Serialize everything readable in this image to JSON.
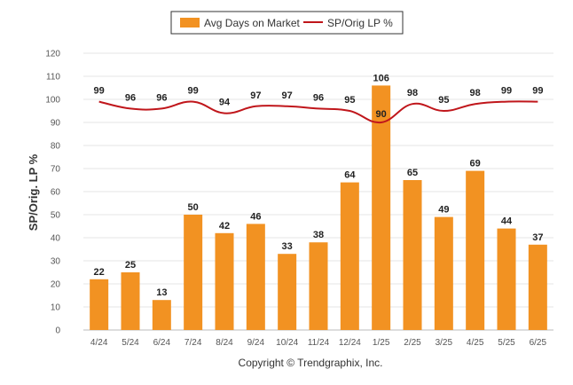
{
  "chart_data": {
    "type": "bar",
    "categories": [
      "4/24",
      "5/24",
      "6/24",
      "7/24",
      "8/24",
      "9/24",
      "10/24",
      "11/24",
      "12/24",
      "1/25",
      "2/25",
      "3/25",
      "4/25",
      "5/25",
      "6/25"
    ],
    "series": [
      {
        "name": "Avg Days on Market",
        "type": "bar",
        "color": "#F29222",
        "values": [
          22,
          25,
          13,
          50,
          42,
          46,
          33,
          38,
          64,
          106,
          65,
          49,
          69,
          44,
          37
        ]
      },
      {
        "name": "SP/Orig LP %",
        "type": "line",
        "color": "#C0161B",
        "values": [
          99,
          96,
          96,
          99,
          94,
          97,
          97,
          96,
          95,
          90,
          98,
          95,
          98,
          99,
          99
        ]
      }
    ],
    "ylabel": "SP/Orig. LP %",
    "ylim": [
      0,
      120
    ],
    "yticks": [
      0,
      10,
      20,
      30,
      40,
      50,
      60,
      70,
      80,
      90,
      100,
      110,
      120
    ],
    "grid": true,
    "legend_position": "top-center",
    "credit": "Copyright © Trendgraphix, Inc."
  }
}
